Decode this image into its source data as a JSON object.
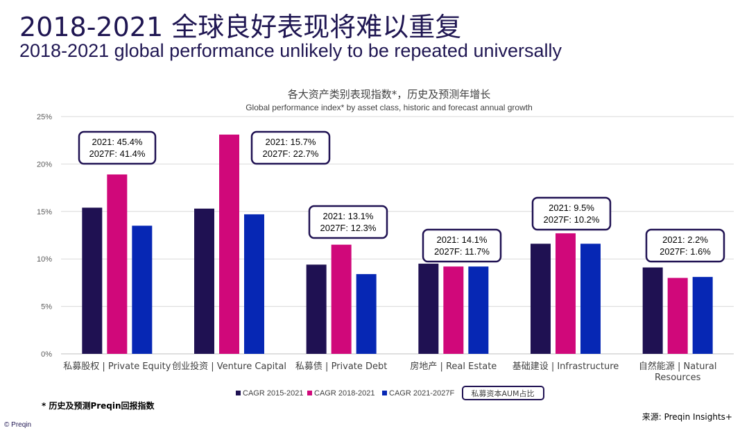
{
  "header": {
    "title_zh": "2018-2021 全球良好表现将难以重复",
    "title_en": "2018-2021 global performance unlikely to be repeated universally"
  },
  "chart_data": {
    "type": "bar",
    "title": "各大资产类别表现指数*，历史及预测年增长",
    "subtitle": "Global performance index* by asset class, historic and forecast annual growth",
    "categories": [
      [
        "私募股权 | Private Equity"
      ],
      [
        "创业投资 | Venture Capital"
      ],
      [
        "私募债 | Private Debt"
      ],
      [
        "房地产 | Real Estate"
      ],
      [
        "基础建设 | Infrastructure"
      ],
      [
        "自然能源 | Natural",
        "Resources"
      ]
    ],
    "series": [
      {
        "name": "CAGR 2015-2021",
        "color": "#1f1152",
        "values": [
          15.4,
          15.3,
          9.4,
          9.5,
          11.6,
          9.1
        ]
      },
      {
        "name": "CAGR 2018-2021",
        "color": "#d0087a",
        "values": [
          18.9,
          23.1,
          11.5,
          9.2,
          12.7,
          8.0
        ]
      },
      {
        "name": "CAGR 2021-2027F",
        "color": "#0627b4",
        "values": [
          13.5,
          14.7,
          8.4,
          9.2,
          11.6,
          8.1
        ]
      }
    ],
    "ylim": [
      0,
      25
    ],
    "yticks": [
      0,
      5,
      10,
      15,
      20,
      25
    ],
    "ytick_labels": [
      "0%",
      "5%",
      "10%",
      "15%",
      "20%",
      "25%"
    ],
    "grid": true,
    "legend_position": "bottom",
    "annotations": [
      {
        "category": 0,
        "lines": [
          "2021: 45.4%",
          "2027F: 41.4%"
        ]
      },
      {
        "category": 1,
        "lines": [
          "2021: 15.7%",
          "2027F: 22.7%"
        ]
      },
      {
        "category": 2,
        "lines": [
          "2021: 13.1%",
          "2027F: 12.3%"
        ]
      },
      {
        "category": 3,
        "lines": [
          "2021: 14.1%",
          "2027F: 11.7%"
        ]
      },
      {
        "category": 4,
        "lines": [
          "2021: 9.5%",
          "2027F: 10.2%"
        ]
      },
      {
        "category": 5,
        "lines": [
          "2021: 2.2%",
          "2027F: 1.6%"
        ]
      }
    ],
    "annotation_legend_label": "私募资本AUM占比",
    "annotation_border_color": "#1f1152"
  },
  "footer": {
    "footnote": "* 历史及预测Preqin回报指数",
    "source": "来源: Preqin Insights+",
    "copyright": "© Preqin"
  }
}
